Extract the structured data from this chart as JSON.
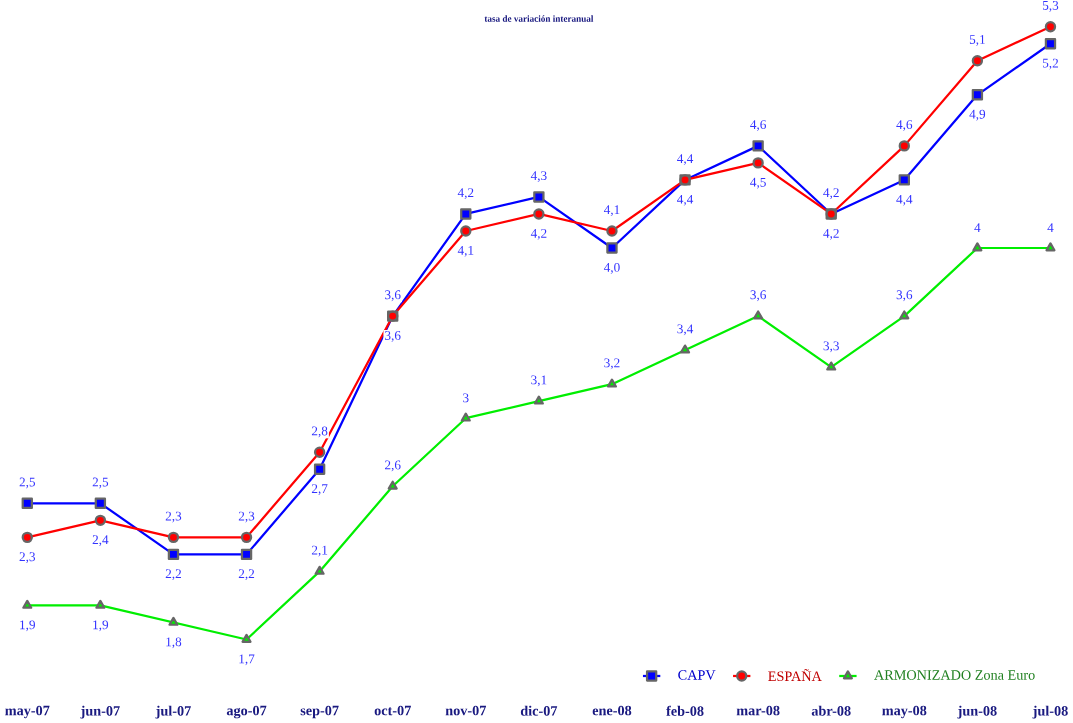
{
  "chart_data": {
    "type": "line",
    "title": "tasa de variación interanual",
    "categories": [
      "may-07",
      "jun-07",
      "jul-07",
      "ago-07",
      "sep-07",
      "oct-07",
      "nov-07",
      "dic-07",
      "ene-08",
      "feb-08",
      "mar-08",
      "abr-08",
      "may-08",
      "jun-08",
      "jul-08"
    ],
    "series": [
      {
        "name": "CAPV",
        "color": "#0000ff",
        "marker": "square",
        "values": [
          2.5,
          2.5,
          2.2,
          2.2,
          2.7,
          3.6,
          4.2,
          4.3,
          4.0,
          4.4,
          4.6,
          4.2,
          4.4,
          4.9,
          5.2
        ],
        "value_labels": [
          "2,5",
          "2,5",
          "2,2",
          "2,2",
          "2,7",
          "3,6",
          "4,2",
          "4,3",
          "4,0",
          "4,4",
          "4,6",
          "4,2",
          "4,4",
          "4,9",
          "5,2"
        ]
      },
      {
        "name": "ESPAÑA",
        "color": "#ff0000",
        "marker": "circle",
        "values": [
          2.3,
          2.4,
          2.3,
          2.3,
          2.8,
          3.6,
          4.1,
          4.2,
          4.1,
          4.4,
          4.5,
          4.2,
          4.6,
          5.1,
          5.3
        ],
        "value_labels": [
          "2,3",
          "2,4",
          "2,3",
          "2,3",
          "2,8",
          "3,6",
          "4,1",
          "4,2",
          "4,1",
          "4,4",
          "4,5",
          "4,2",
          "4,6",
          "5,1",
          "5,3"
        ]
      },
      {
        "name": "ARMONIZADO Zona Euro",
        "color": "#00ee00",
        "marker": "triangle",
        "values": [
          1.9,
          1.9,
          1.8,
          1.7,
          2.1,
          2.6,
          3,
          3.1,
          3.2,
          3.4,
          3.6,
          3.3,
          3.6,
          4,
          4
        ],
        "value_labels": [
          "1,9",
          "1,9",
          "1,8",
          "1,7",
          "2,1",
          "2,6",
          "3",
          "3,1",
          "3,2",
          "3,4",
          "3,6",
          "3,3",
          "3,6",
          "4",
          "4"
        ]
      }
    ],
    "legend": "bottom right",
    "line_style": "solid"
  }
}
